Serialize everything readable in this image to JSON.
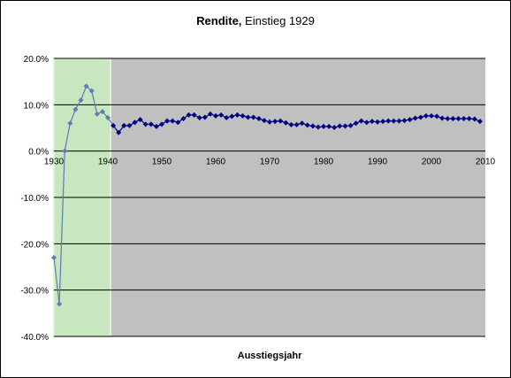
{
  "chart_data": {
    "type": "line",
    "title": {
      "bold": "Rendite,",
      "regular": " Einstieg 1929"
    },
    "xlabel": "Ausstiegsjahr",
    "ylabel": "",
    "xlim": [
      1930,
      2010
    ],
    "ylim": [
      -40,
      20
    ],
    "x_ticks": [
      1930,
      1940,
      1950,
      1960,
      1970,
      1980,
      1990,
      2000,
      2010
    ],
    "x_tick_labels": [
      "1930",
      "1940",
      "1950",
      "1960",
      "1970",
      "1980",
      "1990",
      "2000",
      "2010"
    ],
    "y_ticks": [
      20,
      10,
      0,
      -10,
      -20,
      -30,
      -40
    ],
    "y_tick_labels": [
      "20.0%",
      "10.0%",
      "0.0%",
      "-10.0%",
      "-20.0%",
      "-30.0%",
      "-40.0%"
    ],
    "grid": "horizontal",
    "legend": "none",
    "highlight": {
      "x_start": 1930,
      "x_end": 1940.5
    },
    "colors": {
      "plot_background": "#c0c0c0",
      "highlight": "#c8e6c0",
      "highlight_border": "#e0f0d8",
      "series_marker": "#000080",
      "highlight_line": "#5b7fb0",
      "gridline": "#000000"
    },
    "series": [
      {
        "x": [
          1930,
          1931,
          1932,
          1933,
          1934,
          1935,
          1936,
          1937,
          1938,
          1939,
          1940,
          1941,
          1942,
          1943,
          1944,
          1945,
          1946,
          1947,
          1948,
          1949,
          1950,
          1951,
          1952,
          1953,
          1954,
          1955,
          1956,
          1957,
          1958,
          1959,
          1960,
          1961,
          1962,
          1963,
          1964,
          1965,
          1966,
          1967,
          1968,
          1969,
          1970,
          1971,
          1972,
          1973,
          1974,
          1975,
          1976,
          1977,
          1978,
          1979,
          1980,
          1981,
          1982,
          1983,
          1984,
          1985,
          1986,
          1987,
          1988,
          1989,
          1990,
          1991,
          1992,
          1993,
          1994,
          1995,
          1996,
          1997,
          1998,
          1999,
          2000,
          2001,
          2002,
          2003,
          2004,
          2005,
          2006,
          2007,
          2008,
          2009
        ],
        "y": [
          -23,
          -33,
          0,
          6,
          9,
          11,
          14,
          13,
          8,
          8.5,
          7.2,
          5.5,
          4,
          5.5,
          5.5,
          6.2,
          6.8,
          5.8,
          5.8,
          5.3,
          5.8,
          6.5,
          6.5,
          6.2,
          7,
          7.8,
          7.8,
          7.2,
          7.3,
          8,
          7.6,
          7.8,
          7.2,
          7.5,
          7.8,
          7.6,
          7.3,
          7.3,
          7,
          6.6,
          6.3,
          6.4,
          6.5,
          6.1,
          5.7,
          5.7,
          6,
          5.6,
          5.4,
          5.2,
          5.3,
          5.3,
          5.1,
          5.4,
          5.4,
          5.5,
          6,
          6.5,
          6.2,
          6.4,
          6.3,
          6.4,
          6.5,
          6.5,
          6.5,
          6.6,
          6.8,
          7.1,
          7.3,
          7.6,
          7.6,
          7.5,
          7.1,
          7,
          7,
          7,
          7,
          7,
          6.9,
          6.4
        ]
      }
    ]
  }
}
